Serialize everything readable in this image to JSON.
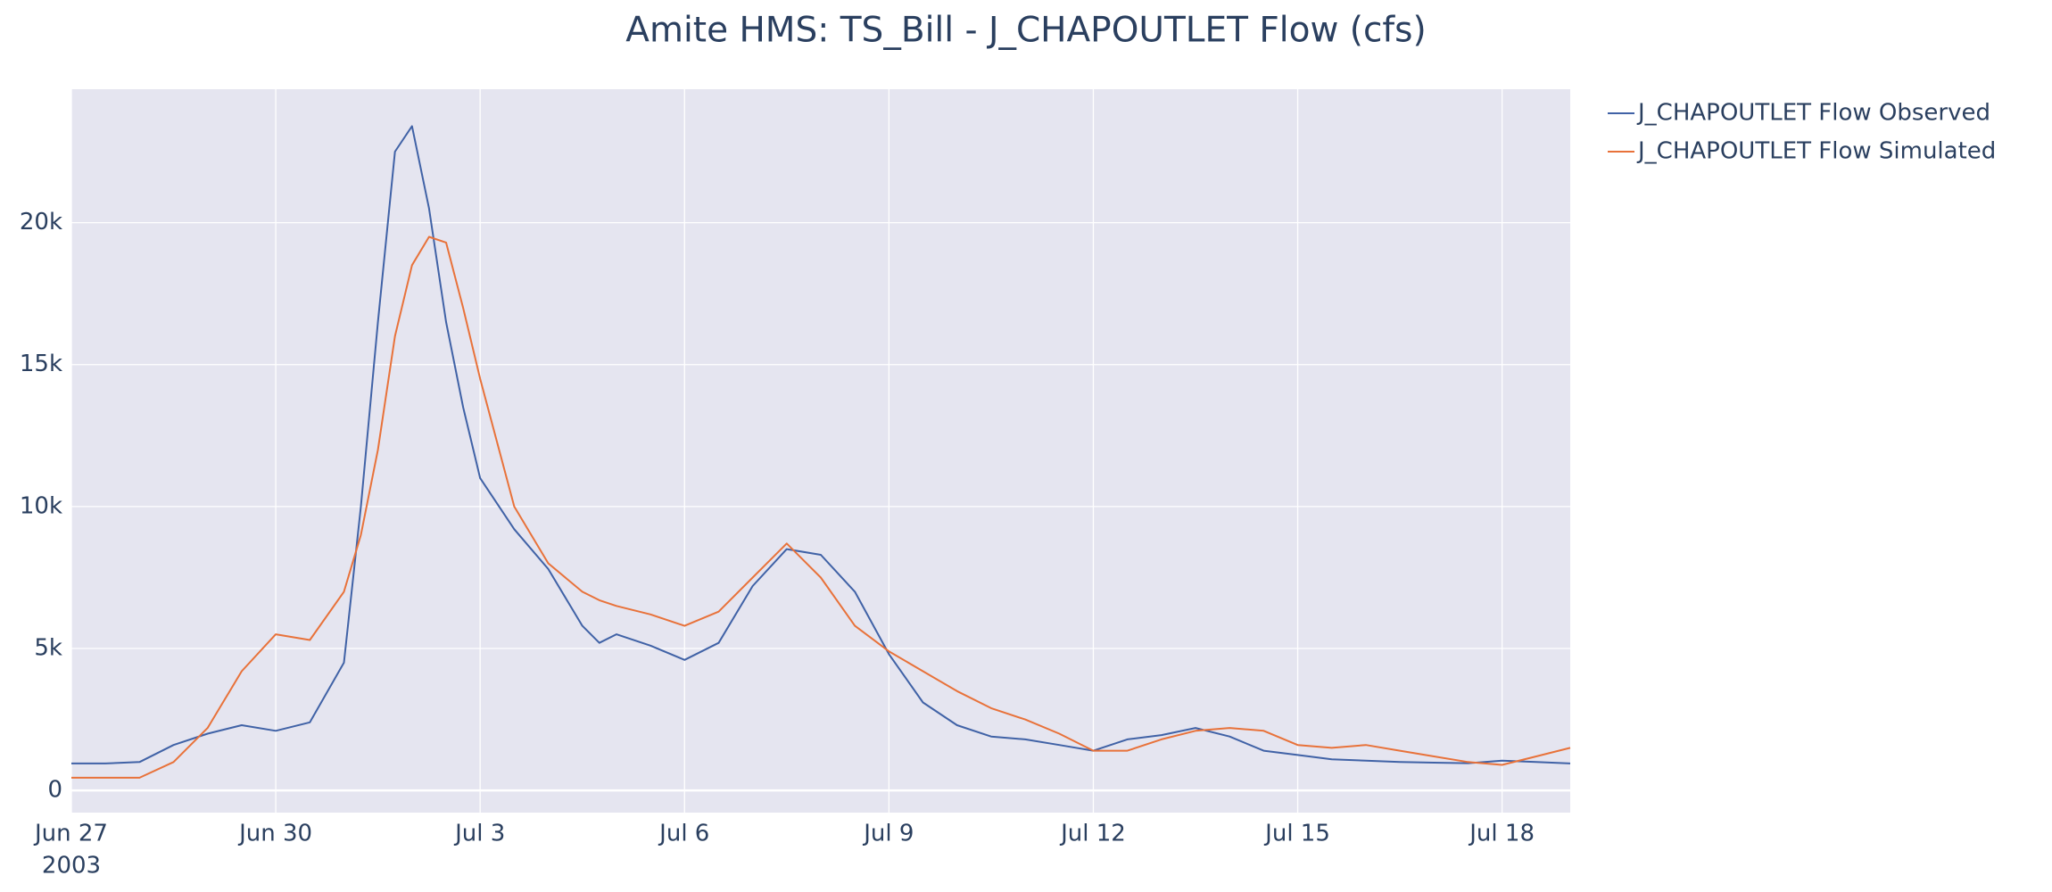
{
  "chart_data": {
    "type": "line",
    "title": "Amite HMS: TS_Bill - J_CHAPOUTLET Flow (cfs)",
    "x": [
      "2003-06-27 00:00",
      "2003-06-27 12:00",
      "2003-06-28 00:00",
      "2003-06-28 12:00",
      "2003-06-29 00:00",
      "2003-06-29 12:00",
      "2003-06-30 00:00",
      "2003-06-30 12:00",
      "2003-07-01 00:00",
      "2003-07-01 06:00",
      "2003-07-01 12:00",
      "2003-07-01 18:00",
      "2003-07-02 00:00",
      "2003-07-02 06:00",
      "2003-07-02 12:00",
      "2003-07-02 18:00",
      "2003-07-03 00:00",
      "2003-07-03 12:00",
      "2003-07-04 00:00",
      "2003-07-04 12:00",
      "2003-07-04 18:00",
      "2003-07-05 00:00",
      "2003-07-05 12:00",
      "2003-07-06 00:00",
      "2003-07-06 12:00",
      "2003-07-07 00:00",
      "2003-07-07 12:00",
      "2003-07-08 00:00",
      "2003-07-08 12:00",
      "2003-07-09 00:00",
      "2003-07-09 12:00",
      "2003-07-10 00:00",
      "2003-07-10 12:00",
      "2003-07-11 00:00",
      "2003-07-11 12:00",
      "2003-07-12 00:00",
      "2003-07-12 12:00",
      "2003-07-13 00:00",
      "2003-07-13 12:00",
      "2003-07-14 00:00",
      "2003-07-14 12:00",
      "2003-07-15 00:00",
      "2003-07-15 12:00",
      "2003-07-16 00:00",
      "2003-07-16 12:00",
      "2003-07-17 00:00",
      "2003-07-17 12:00",
      "2003-07-18 00:00",
      "2003-07-18 12:00",
      "2003-07-19 00:00"
    ],
    "series": [
      {
        "name": "J_CHAPOUTLET Flow Observed",
        "color": "#4062a6",
        "values": [
          950,
          950,
          1000,
          1600,
          2000,
          2300,
          2100,
          2400,
          4500,
          10000,
          16500,
          22500,
          23400,
          20500,
          16500,
          13500,
          11000,
          9200,
          7800,
          5800,
          5200,
          5500,
          5100,
          4600,
          5200,
          7200,
          8500,
          8300,
          7000,
          4800,
          3100,
          2300,
          1900,
          1800,
          1600,
          1400,
          1800,
          1950,
          2200,
          1900,
          1400,
          1250,
          1100,
          1050,
          1000,
          980,
          960,
          1050,
          1000,
          950
        ]
      },
      {
        "name": "J_CHAPOUTLET Flow Simulated",
        "color": "#e8723a",
        "values": [
          450,
          450,
          450,
          1000,
          2200,
          4200,
          5500,
          5300,
          7000,
          9000,
          12000,
          16000,
          18500,
          19500,
          19300,
          17000,
          14500,
          10000,
          8000,
          7000,
          6700,
          6500,
          6200,
          5800,
          6300,
          7500,
          8700,
          7500,
          5800,
          4900,
          4200,
          3500,
          2900,
          2500,
          2000,
          1400,
          1400,
          1800,
          2100,
          2200,
          2100,
          1600,
          1500,
          1600,
          1400,
          1200,
          1000,
          900,
          1200,
          1500
        ]
      }
    ],
    "xlim": [
      "2003-06-27 00:00",
      "2003-07-19 00:00"
    ],
    "xticks": [
      {
        "value": "2003-06-27 00:00",
        "label": "Jun 27"
      },
      {
        "value": "2003-06-30 00:00",
        "label": "Jun 30"
      },
      {
        "value": "2003-07-03 00:00",
        "label": "Jul 3"
      },
      {
        "value": "2003-07-06 00:00",
        "label": "Jul 6"
      },
      {
        "value": "2003-07-09 00:00",
        "label": "Jul 9"
      },
      {
        "value": "2003-07-12 00:00",
        "label": "Jul 12"
      },
      {
        "value": "2003-07-15 00:00",
        "label": "Jul 15"
      },
      {
        "value": "2003-07-18 00:00",
        "label": "Jul 18"
      }
    ],
    "x_year_label": "2003",
    "ylim": [
      -780,
      24700
    ],
    "yticks": [
      0,
      {
        "value": 5000,
        "label": "5k"
      },
      {
        "value": 10000,
        "label": "10k"
      },
      {
        "value": 15000,
        "label": "15k"
      },
      {
        "value": 20000,
        "label": "20k"
      }
    ],
    "grid": true
  }
}
